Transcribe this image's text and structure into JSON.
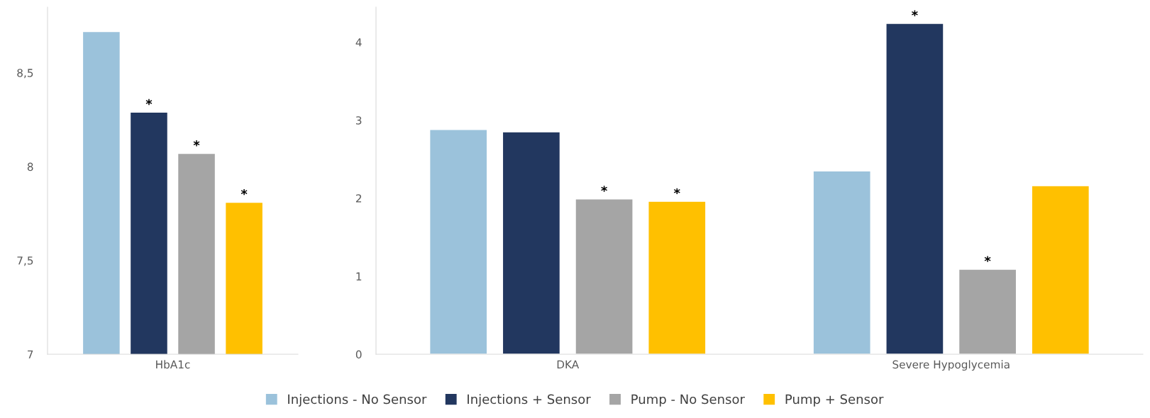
{
  "chart_data": [
    {
      "type": "bar",
      "categories": [
        "HbA1c"
      ],
      "ylim": [
        7,
        8.85
      ],
      "yticks": [
        7,
        {
          "value": 7.5,
          "label": "7,5"
        },
        8,
        {
          "value": 8.5,
          "label": "8,5"
        }
      ],
      "series": [
        {
          "color": "#9bc2db",
          "values": [
            8.72
          ]
        },
        {
          "color": "#22375f",
          "values": [
            8.29
          ],
          "value_labels": [
            "*"
          ]
        },
        {
          "color": "#a5a5a5",
          "values": [
            8.07
          ],
          "value_labels": [
            "*"
          ]
        },
        {
          "color": "#ffc000",
          "values": [
            7.81
          ],
          "value_labels": [
            "*"
          ]
        }
      ]
    },
    {
      "type": "bar",
      "categories": [
        "DKA",
        "Severe Hypoglycemia"
      ],
      "ylim": [
        0,
        4.45
      ],
      "yticks": [
        0,
        1,
        2,
        3,
        4
      ],
      "legend": "bottom",
      "series": [
        {
          "name": "Injections - No Sensor",
          "color": "#9bc2db",
          "values": [
            2.88,
            2.35
          ]
        },
        {
          "name": "Injections + Sensor",
          "color": "#22375f",
          "values": [
            2.85,
            4.24
          ],
          "value_labels": [
            null,
            "*"
          ]
        },
        {
          "name": "Pump - No Sensor",
          "color": "#a5a5a5",
          "values": [
            1.99,
            1.09
          ],
          "value_labels": [
            "*",
            "*"
          ]
        },
        {
          "name": "Pump + Sensor",
          "color": "#ffc000",
          "values": [
            1.96,
            2.16
          ],
          "value_labels": [
            "*",
            null
          ]
        }
      ]
    }
  ]
}
